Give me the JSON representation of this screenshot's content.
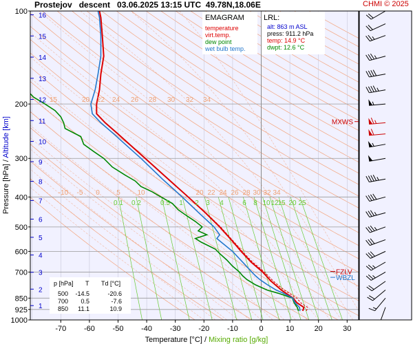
{
  "header": {
    "title": "Prostejov   descent   03.06.2025 13:15 UTC  49.78N,18.06E",
    "credit": "CHMI © 2025"
  },
  "legend": {
    "title": "EMAGRAM",
    "items": [
      {
        "label": "temperature",
        "color": "#dd0000"
      },
      {
        "label": "virt.temp.",
        "color": "#dd0000"
      },
      {
        "label": "dew point",
        "color": "#008800"
      },
      {
        "label": "wet bulb temp.",
        "color": "#2277cc"
      }
    ]
  },
  "lrl": {
    "title": "LRL:",
    "lines": [
      {
        "text": "alt: 863 m ASL",
        "color": "#0000cc"
      },
      {
        "text": "press: 911.2 hPa",
        "color": "#000000"
      },
      {
        "text": "temp: 14.9 °C",
        "color": "#dd0000"
      },
      {
        "text": "dwpt: 12.6 °C",
        "color": "#008800"
      }
    ]
  },
  "table": {
    "headers": [
      "p [hPa]",
      "T",
      "Td [°C]"
    ],
    "rows": [
      [
        "500",
        "-14.5",
        "-20.6"
      ],
      [
        "700",
        "0.5",
        "-7.6"
      ],
      [
        "850",
        "11.1",
        "10.9"
      ]
    ]
  },
  "markers": {
    "mxws": "MXWS",
    "fzlv": "FZLV",
    "wbzl": "WBZL"
  },
  "chart_data": {
    "type": "line",
    "x_axis": {
      "label": "Temperature [°C]",
      "label_extra": "Mixing ratio [g/kg]",
      "separator": "/",
      "range": [
        -80,
        35
      ],
      "ticks": [
        -70,
        -60,
        -50,
        -40,
        -30,
        -20,
        -10,
        0,
        10,
        20,
        30
      ]
    },
    "y_axis": {
      "label": "Pressure [hPa]",
      "label_extra": "Altitude [km]",
      "separator": "/",
      "scale": "log",
      "range": [
        1000,
        100
      ],
      "ticks": [
        100,
        200,
        300,
        400,
        500,
        600,
        700,
        850,
        925,
        1000
      ],
      "altitude_ticks_km": [
        1,
        2,
        3,
        4,
        5,
        6,
        7,
        8,
        9,
        10,
        11,
        12,
        13,
        14,
        15,
        16
      ]
    },
    "dry_adiabat_labels": [
      15,
      20,
      22,
      24,
      26,
      28,
      30,
      32,
      34
    ],
    "moist_adiabat_labels": [
      -10,
      -5,
      0,
      5,
      10,
      20,
      22,
      24,
      26,
      28,
      30,
      32,
      34
    ],
    "mixing_ratio_labels": [
      "0.1",
      "0.2",
      "0.5",
      "1",
      "2",
      "3",
      "4",
      "6",
      "8",
      "10",
      "12",
      "15",
      "20",
      "25"
    ],
    "series": [
      {
        "name": "temperature",
        "color": "#dd0000",
        "points": [
          [
            935,
            14.5
          ],
          [
            911,
            14.9
          ],
          [
            880,
            12.5
          ],
          [
            850,
            11.1
          ],
          [
            800,
            7.0
          ],
          [
            750,
            3.5
          ],
          [
            700,
            0.5
          ],
          [
            650,
            -3.5
          ],
          [
            600,
            -7.0
          ],
          [
            550,
            -10.5
          ],
          [
            500,
            -14.5
          ],
          [
            450,
            -19.5
          ],
          [
            400,
            -25.5
          ],
          [
            350,
            -32.5
          ],
          [
            300,
            -40.5
          ],
          [
            270,
            -46.0
          ],
          [
            250,
            -50.0
          ],
          [
            230,
            -54.5
          ],
          [
            215,
            -57.5
          ],
          [
            200,
            -57.5
          ],
          [
            180,
            -56.5
          ],
          [
            160,
            -56.0
          ],
          [
            140,
            -55.0
          ],
          [
            120,
            -55.5
          ],
          [
            105,
            -56.0
          ],
          [
            100,
            -56.5
          ]
        ]
      },
      {
        "name": "virt.temp.",
        "color": "#dd0000",
        "points": [
          [
            935,
            15.8
          ],
          [
            911,
            16.2
          ],
          [
            880,
            13.8
          ],
          [
            850,
            12.4
          ],
          [
            800,
            8.0
          ],
          [
            750,
            4.3
          ],
          [
            700,
            1.1
          ],
          [
            650,
            -3.0
          ],
          [
            600,
            -6.6
          ],
          [
            550,
            -10.2
          ],
          [
            500,
            -14.2
          ],
          [
            450,
            -19.3
          ],
          [
            400,
            -25.4
          ],
          [
            350,
            -32.4
          ],
          [
            300,
            -40.4
          ],
          [
            270,
            -46.0
          ],
          [
            250,
            -50.0
          ],
          [
            230,
            -54.5
          ],
          [
            215,
            -57.5
          ],
          [
            200,
            -57.5
          ],
          [
            180,
            -56.5
          ],
          [
            160,
            -56.0
          ],
          [
            140,
            -55.0
          ],
          [
            120,
            -55.5
          ],
          [
            105,
            -56.0
          ],
          [
            100,
            -56.5
          ]
        ]
      },
      {
        "name": "dew point",
        "color": "#008800",
        "points": [
          [
            935,
            13.0
          ],
          [
            911,
            12.6
          ],
          [
            880,
            11.5
          ],
          [
            850,
            10.9
          ],
          [
            820,
            6.0
          ],
          [
            800,
            2.0
          ],
          [
            770,
            -2.0
          ],
          [
            740,
            -5.0
          ],
          [
            720,
            -6.5
          ],
          [
            700,
            -7.6
          ],
          [
            670,
            -10.0
          ],
          [
            640,
            -12.0
          ],
          [
            610,
            -14.5
          ],
          [
            590,
            -16.0
          ],
          [
            560,
            -21.0
          ],
          [
            545,
            -23.0
          ],
          [
            530,
            -19.0
          ],
          [
            515,
            -22.0
          ],
          [
            500,
            -20.6
          ],
          [
            480,
            -23.0
          ],
          [
            460,
            -26.0
          ],
          [
            440,
            -29.0
          ],
          [
            420,
            -31.0
          ],
          [
            400,
            -35.0
          ],
          [
            385,
            -38.0
          ],
          [
            370,
            -42.0
          ],
          [
            355,
            -44.0
          ],
          [
            340,
            -47.5
          ],
          [
            320,
            -52.0
          ],
          [
            300,
            -55.0
          ],
          [
            285,
            -58.5
          ],
          [
            270,
            -62.0
          ],
          [
            255,
            -63.0
          ],
          [
            240,
            -68.5
          ],
          [
            230,
            -69.0
          ],
          [
            220,
            -70.0
          ],
          [
            210,
            -72.0
          ],
          [
            200,
            -75.5
          ],
          [
            190,
            -79.5
          ],
          [
            180,
            -82.0
          ]
        ]
      },
      {
        "name": "wet bulb temp.",
        "color": "#2277cc",
        "points": [
          [
            935,
            13.5
          ],
          [
            911,
            13.4
          ],
          [
            880,
            11.8
          ],
          [
            850,
            11.0
          ],
          [
            820,
            7.8
          ],
          [
            800,
            5.2
          ],
          [
            770,
            2.2
          ],
          [
            740,
            -0.5
          ],
          [
            720,
            -2.0
          ],
          [
            700,
            -3.3
          ],
          [
            650,
            -6.5
          ],
          [
            600,
            -10.0
          ],
          [
            560,
            -14.0
          ],
          [
            545,
            -15.5
          ],
          [
            530,
            -14.5
          ],
          [
            500,
            -16.5
          ],
          [
            450,
            -21.8
          ],
          [
            400,
            -27.6
          ],
          [
            350,
            -34.5
          ],
          [
            300,
            -42.0
          ],
          [
            270,
            -47.5
          ],
          [
            250,
            -51.5
          ],
          [
            230,
            -56.0
          ],
          [
            215,
            -59.0
          ],
          [
            200,
            -59.5
          ],
          [
            180,
            -58.0
          ],
          [
            160,
            -57.0
          ],
          [
            140,
            -56.0
          ],
          [
            120,
            -56.0
          ],
          [
            105,
            -56.5
          ],
          [
            100,
            -57.0
          ]
        ]
      }
    ],
    "winds": [
      {
        "p": 910,
        "dir": 200,
        "kt": 10
      },
      {
        "p": 850,
        "dir": 220,
        "kt": 15
      },
      {
        "p": 800,
        "dir": 230,
        "kt": 20
      },
      {
        "p": 750,
        "dir": 235,
        "kt": 20
      },
      {
        "p": 700,
        "dir": 240,
        "kt": 25
      },
      {
        "p": 650,
        "dir": 240,
        "kt": 25
      },
      {
        "p": 600,
        "dir": 245,
        "kt": 30
      },
      {
        "p": 550,
        "dir": 250,
        "kt": 30
      },
      {
        "p": 500,
        "dir": 250,
        "kt": 35
      },
      {
        "p": 450,
        "dir": 255,
        "kt": 35
      },
      {
        "p": 400,
        "dir": 255,
        "kt": 40
      },
      {
        "p": 350,
        "dir": 260,
        "kt": 45
      },
      {
        "p": 300,
        "dir": 260,
        "kt": 50
      },
      {
        "p": 270,
        "dir": 260,
        "kt": 55
      },
      {
        "p": 250,
        "dir": 265,
        "kt": 60
      },
      {
        "p": 230,
        "dir": 265,
        "kt": 65
      },
      {
        "p": 200,
        "dir": 265,
        "kt": 55
      },
      {
        "p": 180,
        "dir": 260,
        "kt": 45
      },
      {
        "p": 160,
        "dir": 260,
        "kt": 40
      },
      {
        "p": 140,
        "dir": 255,
        "kt": 35
      },
      {
        "p": 120,
        "dir": 250,
        "kt": 25
      },
      {
        "p": 110,
        "dir": 245,
        "kt": 20
      },
      {
        "p": 100,
        "dir": 240,
        "kt": 20
      }
    ]
  }
}
